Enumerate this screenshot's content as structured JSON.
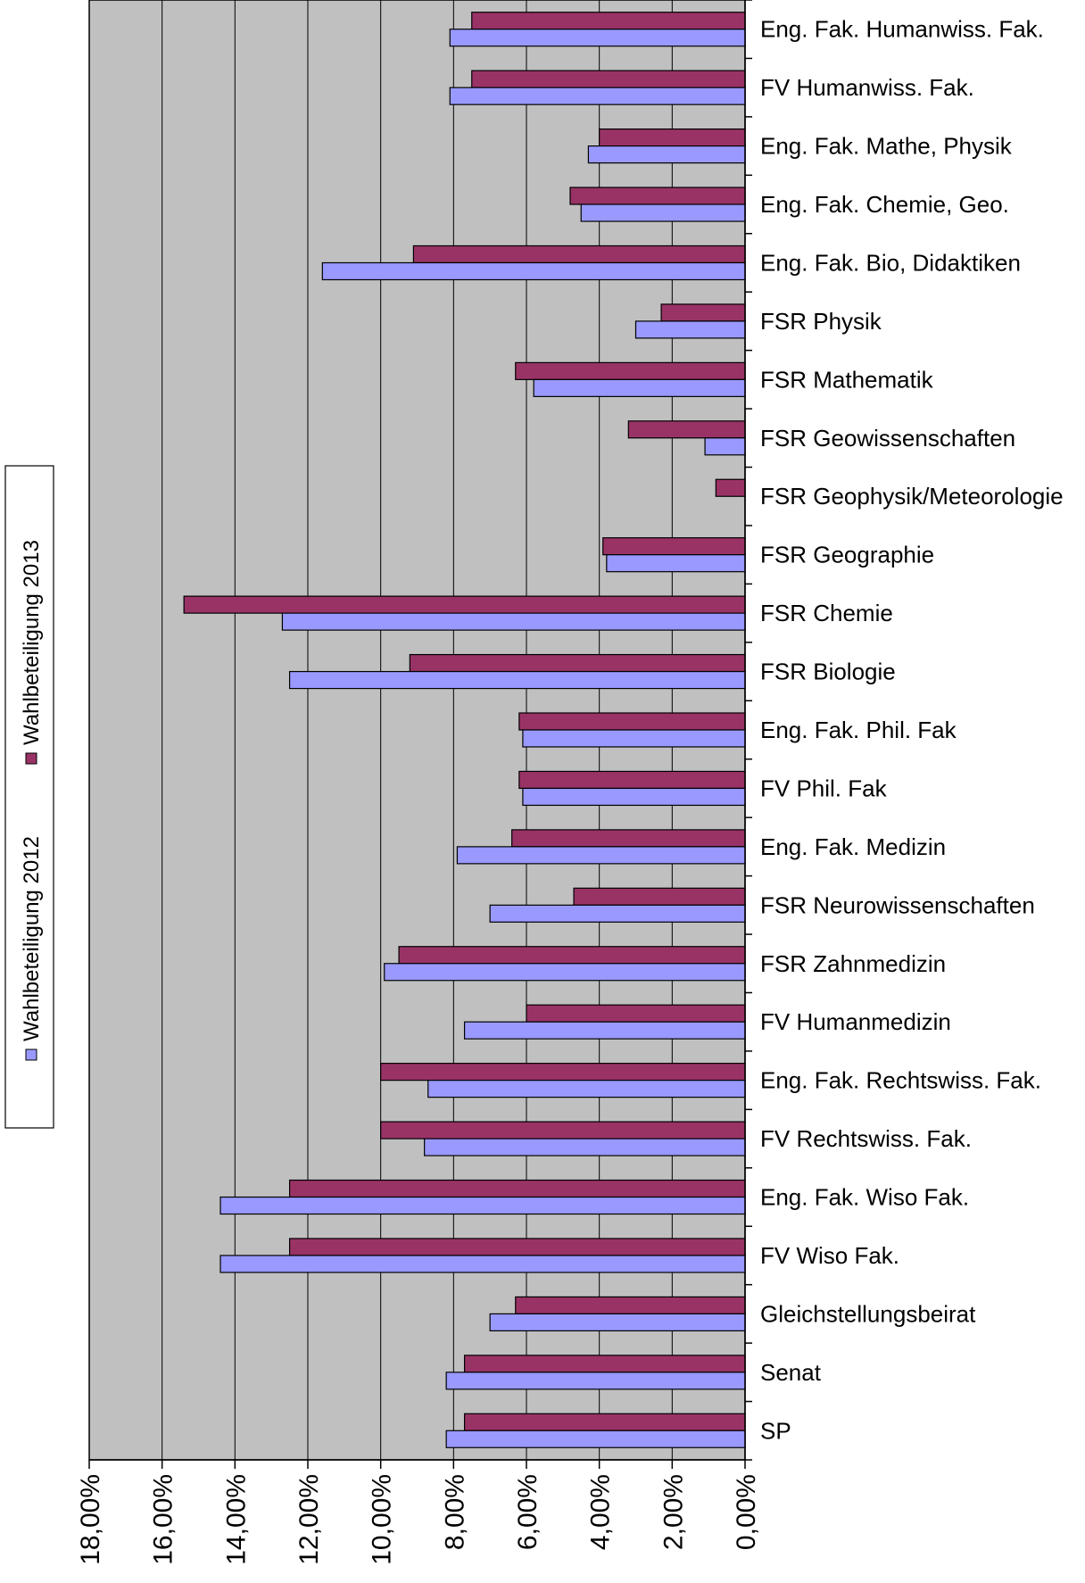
{
  "chart_data": {
    "type": "bar",
    "orientation": "horizontal",
    "x_reversed": true,
    "xlim": [
      0,
      0.18
    ],
    "x_tick_values": [
      0.18,
      0.16,
      0.14,
      0.12,
      0.1,
      0.08,
      0.06,
      0.04,
      0.02,
      0.0
    ],
    "x_tick_labels": [
      "18,00%",
      "16,00%",
      "14,00%",
      "12,00%",
      "10,00%",
      "8,00%",
      "6,00%",
      "4,00%",
      "2,00%",
      "0,00%"
    ],
    "grid": true,
    "legend_position": "left",
    "plot_background": "#c0c0c0",
    "categories": [
      "Eng. Fak. Humanwiss. Fak.",
      "FV Humanwiss. Fak.",
      "Eng. Fak. Mathe, Physik",
      "Eng. Fak. Chemie, Geo.",
      "Eng. Fak. Bio, Didaktiken",
      "FSR Physik",
      "FSR Mathematik",
      "FSR Geowissenschaften",
      "FSR Geophysik/Meteorologie",
      "FSR Geographie",
      "FSR Chemie",
      "FSR Biologie",
      "Eng. Fak. Phil. Fak",
      "FV Phil. Fak",
      "Eng. Fak. Medizin",
      "FSR Neurowissenschaften",
      "FSR Zahnmedizin",
      "FV Humanmedizin",
      "Eng. Fak. Rechtswiss. Fak.",
      "FV Rechtswiss. Fak.",
      "Eng. Fak. Wiso Fak.",
      "FV Wiso Fak.",
      "Gleichstellungsbeirat",
      "Senat",
      "SP"
    ],
    "series": [
      {
        "name": "Wahlbeteiligung 2012",
        "color": "#9999ff",
        "values": [
          0.081,
          0.081,
          0.043,
          0.045,
          0.116,
          0.03,
          0.058,
          0.011,
          0.0,
          0.038,
          0.127,
          0.125,
          0.061,
          0.061,
          0.079,
          0.07,
          0.099,
          0.077,
          0.087,
          0.088,
          0.144,
          0.144,
          0.07,
          0.082,
          0.082
        ]
      },
      {
        "name": "Wahlbeteiligung 2013",
        "color": "#993366",
        "values": [
          0.075,
          0.075,
          0.04,
          0.048,
          0.091,
          0.023,
          0.063,
          0.032,
          0.008,
          0.039,
          0.154,
          0.092,
          0.062,
          0.062,
          0.064,
          0.047,
          0.095,
          0.06,
          0.1,
          0.1,
          0.125,
          0.125,
          0.063,
          0.077,
          0.077
        ]
      }
    ]
  }
}
